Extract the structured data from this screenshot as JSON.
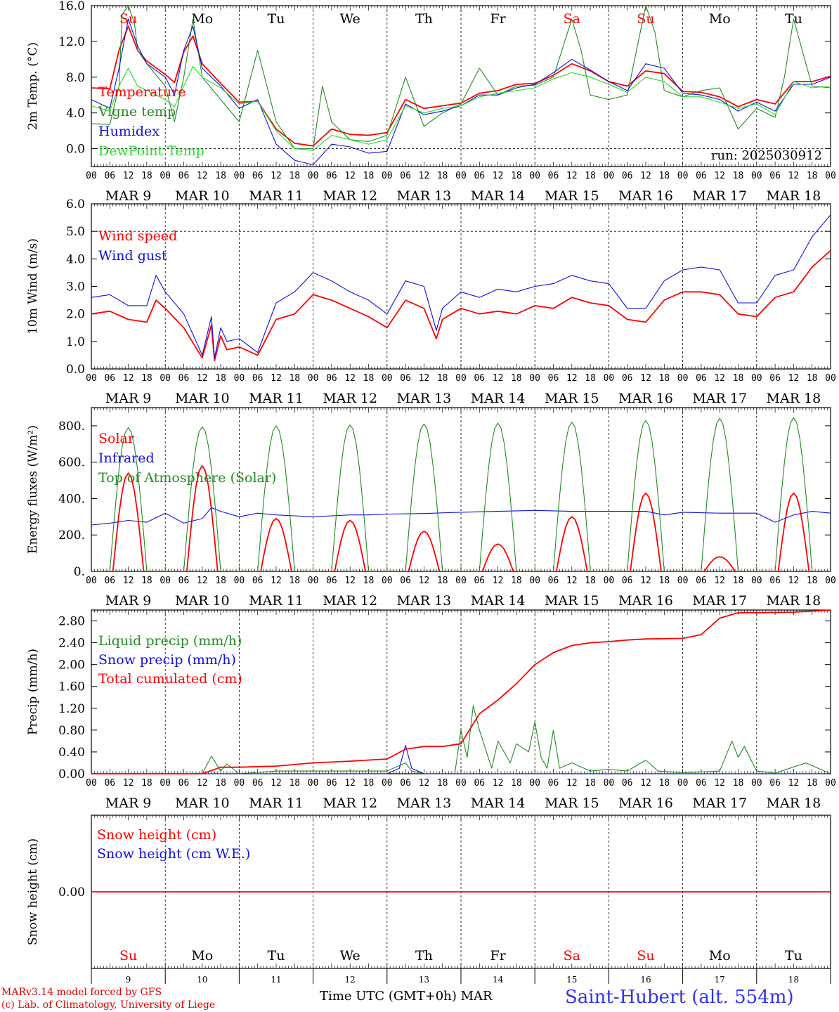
{
  "colors": {
    "red": "#ff0000",
    "green": "#228b22",
    "blue": "#1010e0",
    "light_green": "#22dd22",
    "credit": "#e00000",
    "station": "#3333ee"
  },
  "run_label": "run: 2025030912",
  "hour_ticks": [
    "00",
    "06",
    "12",
    "18"
  ],
  "end_hour_tick": "00",
  "date_labels": [
    "MAR  9",
    "MAR 10",
    "MAR 11",
    "MAR 12",
    "MAR 13",
    "MAR 14",
    "MAR 15",
    "MAR 16",
    "MAR 17",
    "MAR 18"
  ],
  "weekday_labels": [
    {
      "text": "Su",
      "color": "red"
    },
    {
      "text": "Mo",
      "color": "black"
    },
    {
      "text": "Tu",
      "color": "black"
    },
    {
      "text": "We",
      "color": "black"
    },
    {
      "text": "Th",
      "color": "black"
    },
    {
      "text": "Fr",
      "color": "black"
    },
    {
      "text": "Sa",
      "color": "red"
    },
    {
      "text": "Su",
      "color": "red"
    },
    {
      "text": "Mo",
      "color": "black"
    },
    {
      "text": "Tu",
      "color": "black"
    }
  ],
  "day_numbers": [
    "9",
    "10",
    "11",
    "12",
    "13",
    "14",
    "15",
    "16",
    "17",
    "18"
  ],
  "footer": {
    "credit_line1": "MARv3.14 model forced by GFS",
    "credit_line2": "(c) Lab. of Climatology, University of Liege",
    "xlabel": "Time UTC (GMT+0h) MAR",
    "station": "Saint-Hubert (alt. 554m)"
  },
  "chart_data": [
    {
      "type": "line",
      "ylabel": "2m Temp. (°C)",
      "ylim": [
        -2,
        16
      ],
      "yticks": [
        "0.0",
        "4.0",
        "8.0",
        "12.0",
        "16.0"
      ],
      "ytick_values": [
        0,
        4,
        8,
        12,
        16
      ],
      "hline": 0,
      "grid": "vertical dashed at day boundaries",
      "x_unit": "hours since MAR 9 00 UTC",
      "series": [
        {
          "name": "Temperature",
          "color": "red",
          "x": [
            0,
            6,
            9,
            12,
            15,
            18,
            24,
            27,
            30,
            33,
            36,
            42,
            48,
            54,
            60,
            66,
            72,
            78,
            84,
            90,
            96,
            102,
            108,
            114,
            120,
            126,
            132,
            138,
            144,
            150,
            156,
            162,
            168,
            174,
            180,
            186,
            192,
            198,
            204,
            210,
            216,
            222,
            228,
            234,
            240
          ],
          "values": [
            6.8,
            6.7,
            11,
            13.7,
            11,
            9.8,
            8.3,
            7.4,
            10.8,
            12.6,
            9.5,
            7.3,
            5.2,
            5.3,
            2.2,
            0.6,
            0.3,
            2.2,
            1.6,
            1.5,
            1.8,
            5.5,
            4.5,
            4.8,
            5.1,
            6.2,
            6.5,
            7.2,
            7.3,
            8.2,
            9.5,
            8.7,
            7.5,
            7.0,
            8.7,
            8.4,
            6.4,
            6.3,
            5.8,
            4.7,
            5.5,
            5.0,
            7.5,
            7.5,
            8.1
          ]
        },
        {
          "name": "Vigne temp",
          "color": "green",
          "x": [
            0,
            6,
            9,
            10,
            12,
            14,
            15,
            18,
            24,
            27,
            30,
            33,
            36,
            42,
            48,
            54,
            60,
            66,
            72,
            75,
            78,
            84,
            90,
            96,
            102,
            108,
            114,
            120,
            126,
            132,
            138,
            144,
            150,
            156,
            159,
            162,
            168,
            174,
            180,
            183,
            186,
            192,
            198,
            204,
            210,
            216,
            222,
            225,
            228,
            234,
            240
          ],
          "values": [
            2.8,
            2.7,
            7,
            15,
            16,
            14,
            11,
            9.5,
            7,
            3,
            8,
            14.5,
            8,
            5.5,
            3,
            11,
            3,
            0,
            0,
            7,
            3,
            1,
            0.8,
            1.5,
            8,
            2.5,
            4,
            5,
            9,
            6,
            7,
            7.1,
            8,
            14.5,
            11,
            6,
            5.5,
            6,
            16,
            13,
            6.5,
            5.8,
            6.5,
            6.8,
            2.2,
            4.5,
            3.5,
            8,
            14.5,
            7,
            6.8
          ]
        },
        {
          "name": "Humidex",
          "color": "blue",
          "x": [
            0,
            6,
            9,
            12,
            15,
            18,
            24,
            27,
            30,
            33,
            36,
            42,
            48,
            54,
            60,
            66,
            72,
            78,
            84,
            90,
            96,
            102,
            108,
            114,
            120,
            126,
            132,
            138,
            144,
            150,
            156,
            162,
            168,
            174,
            180,
            186,
            192,
            198,
            204,
            210,
            216,
            222,
            228,
            234,
            240
          ],
          "values": [
            5.5,
            4.5,
            9,
            14.5,
            11.5,
            9.5,
            8,
            6,
            11,
            13.7,
            9,
            7,
            4.5,
            5.5,
            0.5,
            -1.3,
            -1.8,
            0.5,
            0.2,
            -0.5,
            -0.3,
            5,
            3.8,
            4.2,
            4.8,
            6,
            6,
            6.8,
            7.2,
            8.5,
            10,
            8.8,
            7.5,
            6.5,
            9.5,
            9,
            6.2,
            6,
            5.5,
            4.2,
            5.2,
            4.2,
            7.2,
            7.2,
            8
          ]
        },
        {
          "name": "DewPoint Temp",
          "color": "light_green",
          "x": [
            0,
            6,
            9,
            12,
            15,
            18,
            24,
            27,
            30,
            33,
            36,
            42,
            48,
            54,
            60,
            66,
            72,
            78,
            84,
            90,
            96,
            102,
            108,
            114,
            120,
            126,
            132,
            138,
            144,
            150,
            156,
            162,
            168,
            174,
            180,
            186,
            192,
            198,
            204,
            210,
            216,
            222,
            228,
            234,
            240
          ],
          "values": [
            4.8,
            4.2,
            7,
            9,
            7,
            6.5,
            5.5,
            4.7,
            7,
            9.2,
            8,
            6.8,
            5,
            5.3,
            2,
            0,
            -0.2,
            1.5,
            1,
            0.5,
            1,
            4.8,
            4,
            4.5,
            4.8,
            5.8,
            6.2,
            6.5,
            6.8,
            7.8,
            8.5,
            8,
            7.2,
            6.3,
            8,
            7.5,
            5.8,
            5.8,
            5.2,
            4.5,
            5,
            3.8,
            7.5,
            6.8,
            7
          ]
        }
      ]
    },
    {
      "type": "line",
      "ylabel": "10m Wind (m/s)",
      "ylim": [
        0,
        6
      ],
      "yticks": [
        "0.0",
        "1.0",
        "2.0",
        "3.0",
        "4.0",
        "5.0",
        "6.0"
      ],
      "ytick_values": [
        0,
        1,
        2,
        3,
        4,
        5,
        6
      ],
      "hline": 5,
      "x_unit": "hours since MAR 9 00 UTC",
      "series": [
        {
          "name": "Wind speed",
          "color": "red",
          "x": [
            0,
            6,
            12,
            18,
            21,
            24,
            30,
            36,
            39,
            40,
            42,
            44,
            48,
            54,
            60,
            66,
            72,
            78,
            84,
            90,
            96,
            102,
            108,
            112,
            114,
            120,
            126,
            132,
            138,
            144,
            150,
            156,
            162,
            168,
            174,
            180,
            186,
            192,
            198,
            204,
            210,
            216,
            222,
            228,
            234,
            240
          ],
          "values": [
            2.0,
            2.1,
            1.8,
            1.7,
            2.5,
            2.2,
            1.5,
            0.4,
            1.6,
            0.3,
            1.2,
            0.7,
            0.8,
            0.5,
            1.8,
            2.0,
            2.7,
            2.5,
            2.2,
            1.9,
            1.5,
            2.5,
            2.2,
            1.1,
            1.8,
            2.2,
            2.0,
            2.1,
            2.0,
            2.3,
            2.2,
            2.6,
            2.4,
            2.3,
            1.8,
            1.7,
            2.5,
            2.8,
            2.8,
            2.7,
            2.0,
            1.9,
            2.6,
            2.8,
            3.7,
            4.3
          ]
        },
        {
          "name": "Wind gust",
          "color": "blue",
          "x": [
            0,
            6,
            12,
            18,
            21,
            24,
            30,
            36,
            39,
            40,
            42,
            44,
            48,
            54,
            60,
            66,
            72,
            78,
            84,
            90,
            96,
            102,
            108,
            112,
            114,
            120,
            126,
            132,
            138,
            144,
            150,
            156,
            162,
            168,
            174,
            180,
            186,
            192,
            198,
            204,
            210,
            216,
            222,
            228,
            234,
            240
          ],
          "values": [
            2.6,
            2.7,
            2.3,
            2.3,
            3.4,
            2.8,
            2.0,
            0.5,
            1.9,
            0.4,
            1.5,
            1.0,
            1.1,
            0.6,
            2.4,
            2.8,
            3.5,
            3.2,
            2.8,
            2.5,
            2.0,
            3.2,
            3.0,
            1.4,
            2.2,
            2.8,
            2.6,
            2.9,
            2.8,
            3.0,
            3.1,
            3.4,
            3.2,
            3.1,
            2.2,
            2.2,
            3.2,
            3.6,
            3.7,
            3.6,
            2.4,
            2.4,
            3.4,
            3.6,
            4.8,
            5.6
          ]
        }
      ]
    },
    {
      "type": "line",
      "ylabel": "Energy fluxes (W/m²)",
      "ylim": [
        0,
        900
      ],
      "yticks": [
        "0.",
        "200.",
        "400.",
        "600.",
        "800."
      ],
      "ytick_values": [
        0,
        200,
        400,
        600,
        800
      ],
      "x_unit": "hours since MAR 9 00 UTC",
      "series": [
        {
          "name": "Solar",
          "color": "red",
          "daily_peak": [
            540,
            580,
            290,
            280,
            220,
            150,
            300,
            430,
            80,
            430
          ]
        },
        {
          "name": "Infrared",
          "color": "blue",
          "x": [
            0,
            6,
            12,
            18,
            24,
            30,
            36,
            39,
            42,
            48,
            54,
            60,
            66,
            72,
            78,
            84,
            90,
            96,
            108,
            120,
            132,
            144,
            156,
            168,
            180,
            186,
            192,
            204,
            216,
            222,
            228,
            234,
            240
          ],
          "values": [
            255,
            265,
            280,
            270,
            320,
            265,
            290,
            350,
            330,
            300,
            320,
            310,
            305,
            300,
            305,
            310,
            310,
            315,
            318,
            325,
            330,
            335,
            330,
            330,
            330,
            310,
            325,
            320,
            320,
            270,
            310,
            330,
            320
          ]
        },
        {
          "name": "Top of Atmosphere (Solar)",
          "color": "green",
          "daily_peak": [
            790,
            795,
            800,
            805,
            810,
            815,
            820,
            830,
            840,
            845
          ]
        }
      ]
    },
    {
      "type": "line",
      "ylabel": "Precip (mm/h)",
      "ylim": [
        0,
        3.0
      ],
      "yticks": [
        "0.00",
        "0.40",
        "0.80",
        "1.20",
        "1.60",
        "2.00",
        "2.40",
        "2.80"
      ],
      "ytick_values": [
        0,
        0.4,
        0.8,
        1.2,
        1.6,
        2.0,
        2.4,
        2.8
      ],
      "x_unit": "hours since MAR 9 00 UTC",
      "series": [
        {
          "name": "Liquid precip (mm/h)",
          "color": "green",
          "x": [
            0,
            36,
            39,
            42,
            44,
            48,
            60,
            72,
            96,
            102,
            104,
            108,
            118,
            120,
            122,
            124,
            126,
            130,
            132,
            136,
            138,
            142,
            144,
            146,
            148,
            150,
            152,
            156,
            162,
            168,
            174,
            180,
            184,
            192,
            204,
            208,
            210,
            212,
            216,
            222,
            232,
            240
          ],
          "values": [
            0,
            0,
            0.32,
            0.05,
            0.18,
            0,
            0.05,
            0.05,
            0.05,
            0.2,
            0.05,
            0,
            0,
            0.8,
            0.3,
            1.25,
            0.8,
            0.1,
            0.6,
            0.2,
            0.55,
            0.4,
            0.95,
            0.3,
            0.1,
            0.8,
            0.1,
            0.2,
            0.05,
            0.08,
            0.05,
            0.25,
            0.05,
            0.02,
            0.05,
            0.6,
            0.3,
            0.5,
            0.05,
            0.01,
            0.2,
            0
          ]
        },
        {
          "name": "Snow precip (mm/h)",
          "color": "blue",
          "x": [
            0,
            96,
            100,
            102,
            104,
            108,
            240
          ],
          "values": [
            0,
            0,
            0.1,
            0.52,
            0.1,
            0,
            0
          ]
        },
        {
          "name": "Total cumulated (cm)",
          "color": "red",
          "x": [
            0,
            36,
            42,
            48,
            60,
            72,
            84,
            96,
            102,
            108,
            114,
            120,
            126,
            132,
            138,
            144,
            150,
            156,
            162,
            168,
            174,
            180,
            192,
            198,
            204,
            210,
            216,
            228,
            234,
            240
          ],
          "values": [
            0,
            0,
            0.12,
            0.12,
            0.14,
            0.2,
            0.23,
            0.27,
            0.45,
            0.5,
            0.5,
            0.55,
            1.1,
            1.35,
            1.65,
            2.0,
            2.22,
            2.35,
            2.4,
            2.42,
            2.45,
            2.47,
            2.48,
            2.55,
            2.85,
            2.95,
            2.95,
            2.96,
            2.98,
            3.0
          ]
        }
      ]
    },
    {
      "type": "line",
      "ylabel": "Snow height (cm)",
      "ylim": [
        -1,
        1
      ],
      "yticks": [
        "0.00"
      ],
      "ytick_values": [
        0
      ],
      "x_unit": "hours since MAR 9 00 UTC",
      "series": [
        {
          "name": "Snow height (cm)",
          "color": "red",
          "x": [
            0,
            240
          ],
          "values": [
            0,
            0
          ]
        },
        {
          "name": "Snow height (cm W.E.)",
          "color": "blue",
          "x": [],
          "values": []
        }
      ]
    }
  ]
}
